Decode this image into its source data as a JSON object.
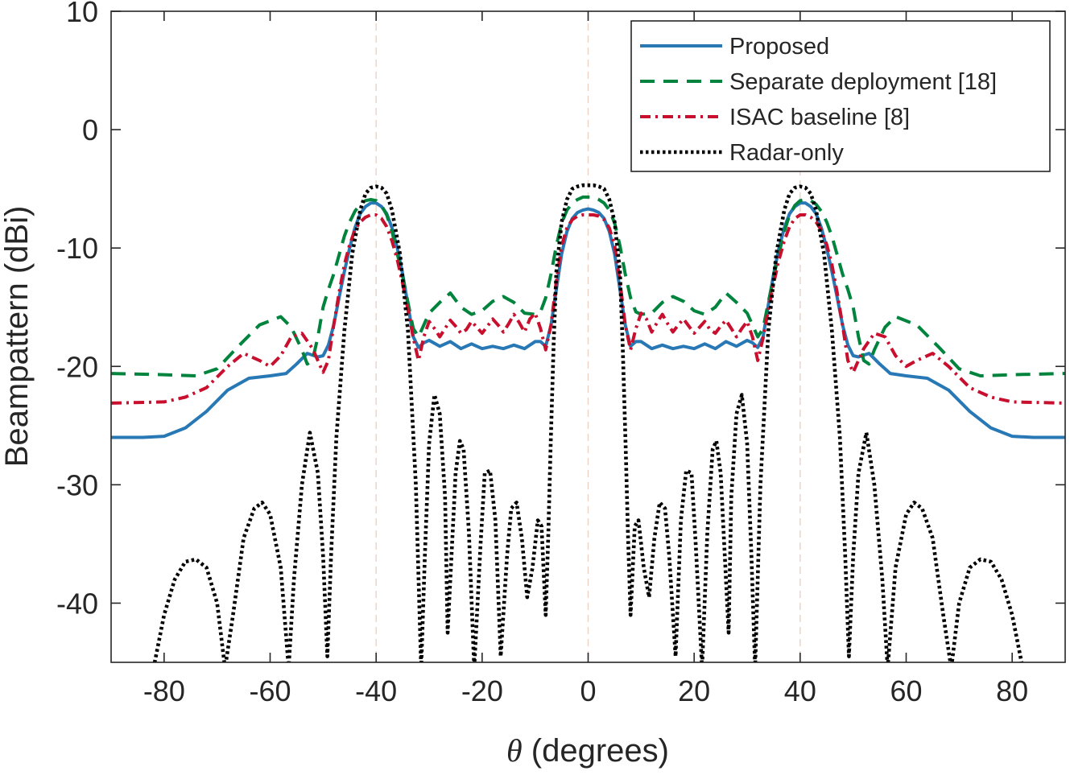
{
  "chart_data": {
    "type": "line",
    "xlabel_symbol": "θ",
    "xlabel_text": " (degrees)",
    "ylabel": "Beampattern (dBi)",
    "xlim": [
      -90,
      90
    ],
    "ylim": [
      -45,
      10
    ],
    "xticks": [
      -80,
      -60,
      -40,
      -20,
      0,
      20,
      40,
      60,
      80
    ],
    "yticks": [
      10,
      0,
      -10,
      -20,
      -30,
      -40
    ],
    "xtick_labels": [
      "-80",
      "-60",
      "-40",
      "-20",
      "0",
      "20",
      "40",
      "60",
      "80"
    ],
    "ytick_labels": [
      "10",
      "0",
      "-10",
      "-20",
      "-30",
      "-40"
    ],
    "target_angles": [
      -40,
      0,
      40
    ],
    "legend_position": "top-right",
    "series": [
      {
        "name": "Proposed",
        "color": "#2878b5",
        "style": "solid",
        "x": [
          -90,
          -84,
          -80,
          -76,
          -72,
          -68,
          -64,
          -60,
          -57,
          -55,
          -53,
          -51,
          -50,
          -49,
          -48,
          -47,
          -46,
          -45,
          -44,
          -43,
          -42,
          -41,
          -40,
          -39,
          -38,
          -37,
          -36,
          -35,
          -34,
          -33,
          -32,
          -31,
          -30,
          -28,
          -26,
          -24,
          -22,
          -20,
          -18,
          -16,
          -14,
          -12,
          -10,
          -9,
          -8,
          -7,
          -6,
          -5,
          -4,
          -3,
          -2,
          -1,
          0,
          1,
          2,
          3,
          4,
          5,
          6,
          7,
          8,
          9,
          10,
          12,
          14,
          16,
          18,
          20,
          22,
          24,
          26,
          28,
          30,
          31,
          32,
          33,
          34,
          35,
          36,
          37,
          38,
          39,
          40,
          41,
          42,
          43,
          44,
          45,
          46,
          47,
          48,
          49,
          50,
          51,
          53,
          55,
          57,
          60,
          64,
          68,
          72,
          76,
          80,
          84,
          90
        ],
        "y": [
          -26,
          -26,
          -25.9,
          -25.2,
          -23.8,
          -22,
          -21,
          -20.8,
          -20.6,
          -19.8,
          -18.9,
          -19.2,
          -19.1,
          -18.2,
          -16.5,
          -14.2,
          -12,
          -10,
          -8.3,
          -7.1,
          -6.5,
          -6.2,
          -6.2,
          -6.5,
          -7.1,
          -8.3,
          -10,
          -12.2,
          -14.8,
          -17.5,
          -18.4,
          -18,
          -17.8,
          -18.3,
          -17.9,
          -18.5,
          -18.1,
          -18.5,
          -18.3,
          -18.5,
          -18.2,
          -18.5,
          -17.9,
          -17.9,
          -18.3,
          -16.5,
          -13.5,
          -10.5,
          -8.6,
          -7.5,
          -7,
          -6.8,
          -6.7,
          -6.8,
          -7,
          -7.5,
          -8.6,
          -10.5,
          -13.5,
          -16.5,
          -18.3,
          -17.9,
          -17.9,
          -18.5,
          -18.2,
          -18.5,
          -18.3,
          -18.5,
          -18.1,
          -18.5,
          -17.9,
          -18.3,
          -17.8,
          -18,
          -18.4,
          -17.5,
          -14.8,
          -12.2,
          -10,
          -8.3,
          -7.1,
          -6.5,
          -6.2,
          -6.2,
          -6.5,
          -7.1,
          -8.3,
          -10,
          -12,
          -14.2,
          -16.5,
          -18.2,
          -19.1,
          -19.2,
          -18.9,
          -19.8,
          -20.6,
          -20.8,
          -21,
          -22,
          -23.8,
          -25.2,
          -25.9,
          -26,
          -26
        ]
      },
      {
        "name": "Separate deployment [18]",
        "color": "#00843d",
        "style": "dashed",
        "x": [
          -90,
          -80,
          -74,
          -70,
          -66,
          -62,
          -58,
          -56,
          -54,
          -53,
          -52,
          -51,
          -50,
          -49,
          -48,
          -47,
          -46,
          -45,
          -44,
          -43,
          -42,
          -41,
          -40,
          -39,
          -38,
          -37,
          -36,
          -35,
          -34,
          -33,
          -32,
          -31,
          -30,
          -28,
          -26,
          -24,
          -22,
          -20,
          -18,
          -16,
          -14,
          -12,
          -10,
          -9,
          -8,
          -7,
          -6,
          -5,
          -4,
          -3,
          -2,
          -1,
          0,
          1,
          2,
          3,
          4,
          5,
          6,
          7,
          8,
          9,
          10,
          12,
          14,
          16,
          18,
          20,
          22,
          24,
          26,
          28,
          30,
          31,
          32,
          33,
          34,
          35,
          36,
          37,
          38,
          39,
          40,
          41,
          42,
          43,
          44,
          45,
          46,
          47,
          48,
          49,
          50,
          51,
          52,
          53,
          54,
          56,
          58,
          62,
          66,
          70,
          74,
          80,
          90
        ],
        "y": [
          -20.6,
          -20.7,
          -20.8,
          -20.2,
          -18.3,
          -16.5,
          -15.8,
          -16.7,
          -18.6,
          -19.8,
          -19.5,
          -17.5,
          -15,
          -13.5,
          -12.2,
          -10.6,
          -9,
          -7.8,
          -6.9,
          -6.3,
          -6,
          -5.9,
          -6,
          -6.4,
          -7.2,
          -8.6,
          -10.5,
          -12.4,
          -14.6,
          -16.8,
          -17.5,
          -16.5,
          -15.5,
          -14.6,
          -13.8,
          -15,
          -15.6,
          -15.3,
          -14.5,
          -14.1,
          -14.6,
          -15.5,
          -15.6,
          -15.4,
          -14.2,
          -12.2,
          -9.8,
          -7.9,
          -6.8,
          -6.2,
          -5.9,
          -5.7,
          -5.7,
          -5.7,
          -5.9,
          -6.2,
          -6.8,
          -7.9,
          -9.8,
          -12.2,
          -14.2,
          -15.4,
          -15.6,
          -15.5,
          -14.6,
          -14.1,
          -14.5,
          -15.3,
          -15.6,
          -15,
          -13.8,
          -14.6,
          -15.5,
          -16.5,
          -17.5,
          -16.8,
          -14.6,
          -12.4,
          -10.5,
          -8.6,
          -7.2,
          -6.4,
          -6,
          -5.9,
          -6,
          -6.3,
          -6.9,
          -7.8,
          -9,
          -10.6,
          -12.2,
          -13.5,
          -15,
          -17.5,
          -19.5,
          -19.8,
          -18.6,
          -16.7,
          -15.8,
          -16.5,
          -18.3,
          -20.2,
          -20.8,
          -20.7,
          -20.6
        ]
      },
      {
        "name": "ISAC baseline [8]",
        "color": "#c8102e",
        "style": "dashdot",
        "x": [
          -90,
          -80,
          -76,
          -72,
          -68,
          -65,
          -62,
          -60,
          -58,
          -56,
          -54,
          -52,
          -50,
          -49,
          -48,
          -47,
          -46,
          -45,
          -44,
          -43,
          -42,
          -41,
          -40,
          -39,
          -38,
          -37,
          -36,
          -35,
          -34,
          -33,
          -32,
          -31,
          -30,
          -29,
          -28,
          -27,
          -26,
          -25,
          -24,
          -23,
          -22,
          -21,
          -20,
          -19,
          -18,
          -17,
          -16,
          -15,
          -14,
          -13,
          -12,
          -11,
          -10,
          -9,
          -8,
          -7,
          -6,
          -5,
          -4,
          -3,
          -2,
          -1,
          0,
          1,
          2,
          3,
          4,
          5,
          6,
          7,
          8,
          9,
          10,
          11,
          12,
          13,
          14,
          15,
          16,
          17,
          18,
          19,
          20,
          21,
          22,
          23,
          24,
          25,
          26,
          27,
          28,
          29,
          30,
          31,
          32,
          33,
          34,
          35,
          36,
          37,
          38,
          39,
          40,
          41,
          42,
          43,
          44,
          45,
          46,
          47,
          48,
          49,
          50,
          52,
          54,
          56,
          58,
          60,
          62,
          65,
          68,
          72,
          76,
          80,
          90
        ],
        "y": [
          -23.1,
          -23,
          -22.6,
          -21.8,
          -20,
          -18.9,
          -19.5,
          -20,
          -19.1,
          -17.5,
          -17.2,
          -18.5,
          -20.5,
          -19.5,
          -16.5,
          -13.8,
          -11.4,
          -9.7,
          -8.5,
          -7.8,
          -7.4,
          -7.2,
          -7.2,
          -7.5,
          -8.2,
          -9.4,
          -11,
          -13,
          -15.2,
          -17.6,
          -19.5,
          -17.5,
          -16.2,
          -16.8,
          -17.5,
          -16.8,
          -16.1,
          -16.6,
          -17.2,
          -16.9,
          -16.2,
          -16.7,
          -17.2,
          -16.6,
          -16,
          -16.5,
          -17.1,
          -16.4,
          -15.6,
          -16.3,
          -17.1,
          -16,
          -15.5,
          -16.8,
          -18.6,
          -16.5,
          -12.8,
          -9.8,
          -8.3,
          -7.6,
          -7.3,
          -7.2,
          -7.2,
          -7.2,
          -7.3,
          -7.6,
          -8.3,
          -9.8,
          -12.8,
          -16.5,
          -18.6,
          -16.8,
          -15.5,
          -16,
          -17.1,
          -16.3,
          -15.6,
          -16.4,
          -17.1,
          -16.5,
          -16,
          -16.6,
          -17.2,
          -16.7,
          -16.2,
          -16.9,
          -17.2,
          -16.6,
          -16.1,
          -16.8,
          -17.5,
          -16.8,
          -16.2,
          -17.5,
          -19.5,
          -17.6,
          -15.2,
          -13,
          -11,
          -9.4,
          -8.2,
          -7.5,
          -7.2,
          -7.2,
          -7.4,
          -7.8,
          -8.5,
          -9.7,
          -11.4,
          -13.8,
          -16.5,
          -19.5,
          -20.5,
          -18.5,
          -17.2,
          -17.5,
          -19.1,
          -20,
          -19.5,
          -18.9,
          -20,
          -21.8,
          -22.6,
          -23,
          -23.1
        ]
      },
      {
        "name": "Radar-only",
        "color": "#000000",
        "style": "dotted",
        "x": [
          -82,
          -80,
          -78,
          -76,
          -74,
          -72,
          -70,
          -68.5,
          -67,
          -65,
          -63,
          -61.5,
          -60,
          -58,
          -56.5,
          -55.5,
          -54,
          -52.5,
          -51,
          -50,
          -49.2,
          -48.5,
          -47.5,
          -46,
          -44.5,
          -43,
          -42,
          -41,
          -40,
          -39,
          -38,
          -37,
          -35.5,
          -34,
          -32.5,
          -31.5,
          -30.8,
          -30,
          -29,
          -28,
          -27,
          -26.5,
          -25,
          -24.2,
          -23.5,
          -22.5,
          -21.5,
          -20.3,
          -19.5,
          -18.5,
          -17.5,
          -16.5,
          -15.3,
          -14.5,
          -13.5,
          -12.5,
          -11.5,
          -10.5,
          -9.5,
          -8.8,
          -8,
          -7.5,
          -7.1,
          -6.5,
          -6,
          -5,
          -4,
          -3,
          -2,
          -1,
          0,
          1,
          2,
          3,
          4,
          5,
          6,
          6.5,
          7.1,
          7.5,
          8,
          8.8,
          9.5,
          10.5,
          11.5,
          12.5,
          13.5,
          14.5,
          15.3,
          16.5,
          17.5,
          18.5,
          19.5,
          20.3,
          21.5,
          22.5,
          23.5,
          24.2,
          25,
          26.5,
          27,
          28,
          29,
          30,
          30.8,
          31.5,
          32.5,
          34,
          35.5,
          37,
          38,
          39,
          40,
          41,
          42,
          43,
          44.5,
          46,
          47.5,
          48.5,
          49.2,
          50,
          51,
          52.5,
          54,
          55.5,
          56.5,
          58,
          60,
          61.5,
          63,
          65,
          67,
          68.5,
          70,
          72,
          74,
          76,
          78,
          80,
          82
        ],
        "y": [
          -45.5,
          -41,
          -38,
          -36.5,
          -36.3,
          -37,
          -40,
          -45.5,
          -41,
          -34.5,
          -32,
          -31.5,
          -32.5,
          -37,
          -45.5,
          -38,
          -30,
          -25.6,
          -29,
          -36,
          -44.5,
          -36,
          -26,
          -17,
          -10.5,
          -6.8,
          -5.4,
          -4.9,
          -4.8,
          -4.9,
          -5.4,
          -6.8,
          -10.5,
          -17,
          -30,
          -45.5,
          -36,
          -26.5,
          -22.4,
          -24,
          -31,
          -42.5,
          -29,
          -26.3,
          -27,
          -34,
          -45.5,
          -35,
          -29,
          -28.8,
          -33,
          -44.5,
          -36,
          -32,
          -31.5,
          -34.5,
          -39.5,
          -37,
          -33,
          -33.5,
          -41,
          -34,
          -27,
          -18,
          -12,
          -7.8,
          -5.9,
          -5,
          -4.8,
          -4.7,
          -4.7,
          -4.7,
          -4.8,
          -5,
          -5.9,
          -7.8,
          -12,
          -18,
          -27,
          -34,
          -41,
          -33.5,
          -33,
          -37,
          -39.5,
          -34.5,
          -31.5,
          -32,
          -36,
          -44.5,
          -33,
          -28.8,
          -29,
          -35,
          -45.5,
          -34,
          -27,
          -26.3,
          -29,
          -42.5,
          -31,
          -24,
          -22.4,
          -26.5,
          -36,
          -45.5,
          -30,
          -17,
          -10.5,
          -6.8,
          -5.4,
          -4.9,
          -4.8,
          -4.9,
          -5.4,
          -6.8,
          -10.5,
          -17,
          -26,
          -36,
          -44.5,
          -36,
          -29,
          -25.6,
          -30,
          -38,
          -45.5,
          -37,
          -32.5,
          -31.5,
          -32,
          -34.5,
          -41,
          -45.5,
          -40,
          -37,
          -36.3,
          -36.5,
          -38,
          -41,
          -45.5
        ]
      }
    ]
  }
}
